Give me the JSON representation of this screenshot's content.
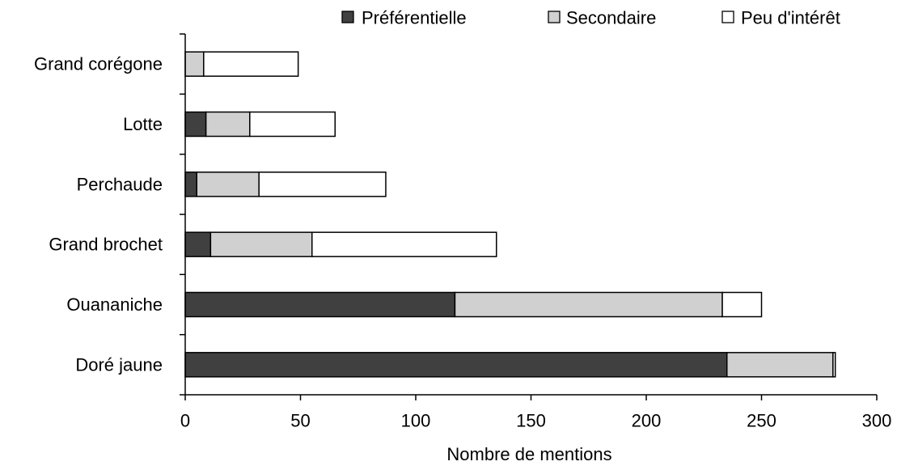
{
  "chart_data": {
    "type": "bar",
    "orientation": "horizontal",
    "stacked": true,
    "categories": [
      "Grand corégone",
      "Lotte",
      "Perchaude",
      "Grand brochet",
      "Ouananiche",
      "Doré jaune"
    ],
    "series": [
      {
        "name": "Préférentielle",
        "color": "#404040",
        "values": [
          0,
          9,
          5,
          11,
          117,
          235
        ]
      },
      {
        "name": "Secondaire",
        "color": "#d0d0d0",
        "values": [
          8,
          19,
          27,
          44,
          116,
          46
        ]
      },
      {
        "name": "Peu d'intérêt",
        "color": "#ffffff",
        "values": [
          41,
          37,
          55,
          80,
          17,
          1
        ]
      }
    ],
    "xlabel": "Nombre de mentions",
    "ylabel": "",
    "title": "",
    "xlim": [
      0,
      300
    ],
    "xticks": [
      0,
      50,
      100,
      150,
      200,
      250,
      300
    ],
    "xtick_labels": [
      "0",
      "50",
      "100",
      "150",
      "200",
      "250",
      "300"
    ],
    "grid": false,
    "legend_position": "top-right"
  }
}
